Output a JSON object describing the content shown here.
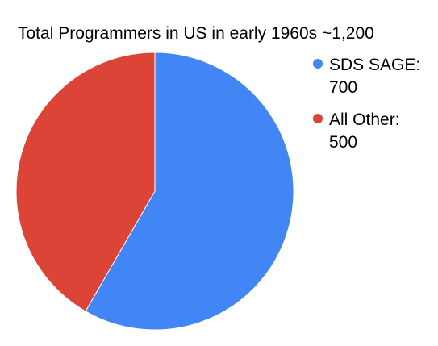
{
  "chart_data": {
    "type": "pie",
    "title": "Total Programmers in US in early 1960s ~1,200",
    "slices": [
      {
        "label": "SDS SAGE:",
        "value": 700,
        "value_label": "700",
        "color": "#4285F4"
      },
      {
        "label": "All Other:",
        "value": 500,
        "value_label": "500",
        "color": "#DB4437"
      }
    ],
    "start_angle_deg": 0,
    "direction": "clockwise",
    "legend_position": "right"
  }
}
